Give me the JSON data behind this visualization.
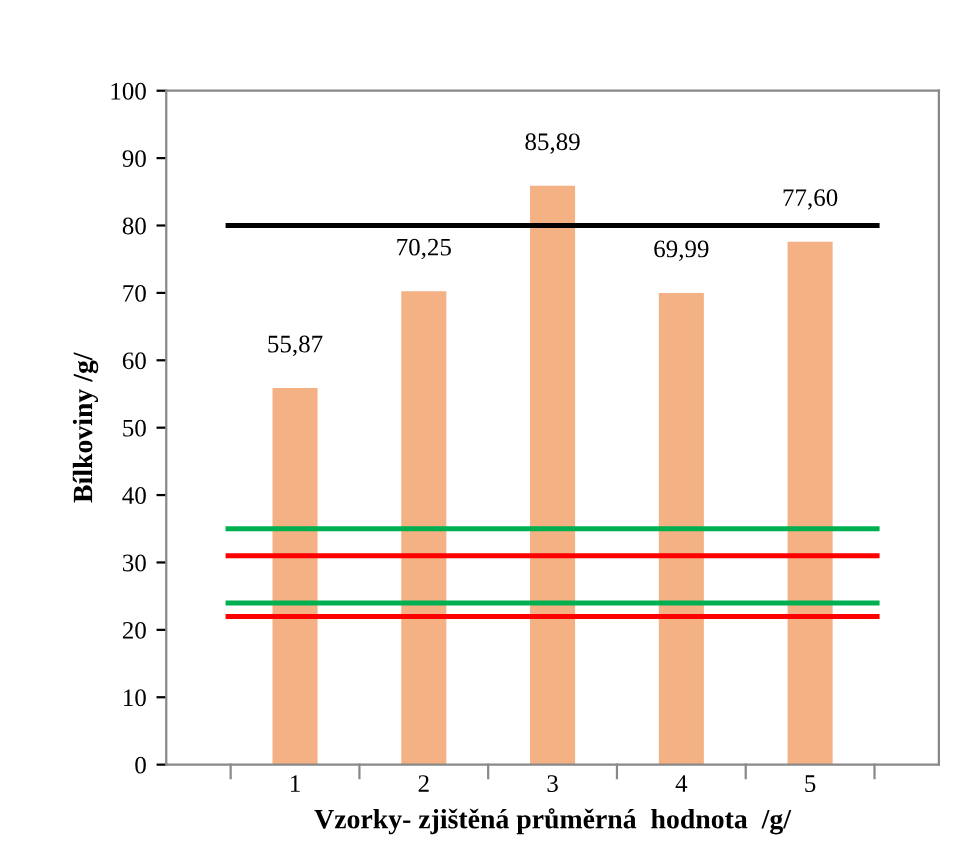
{
  "chart_data": {
    "type": "bar",
    "xlabel": "Vzorky- zjištěná průměrná  hodnota  /g/",
    "ylabel": "Bílkoviny /g/",
    "categories": [
      null,
      "1",
      "2",
      "3",
      "4",
      "5",
      null
    ],
    "series": [
      {
        "color": "#f4b183",
        "values": [
          null,
          55.87,
          70.25,
          85.89,
          69.99,
          77.6,
          null
        ],
        "value_labels": [
          null,
          "55,87",
          "70,25",
          "85,89",
          "69,99",
          "77,60",
          null
        ]
      }
    ],
    "ylim": [
      0,
      100
    ],
    "yticks": [
      0,
      10,
      20,
      30,
      40,
      50,
      60,
      70,
      80,
      90,
      100
    ],
    "grid": false,
    "legend": false,
    "ref_lines": [
      {
        "axis": "y",
        "value": 80,
        "color": "#000000"
      },
      {
        "axis": "y",
        "value": 35,
        "color": "#00b050"
      },
      {
        "axis": "y",
        "value": 31,
        "color": "#ff0000"
      },
      {
        "axis": "y",
        "value": 24,
        "color": "#00b050"
      },
      {
        "axis": "y",
        "value": 22,
        "color": "#ff0000"
      }
    ]
  }
}
